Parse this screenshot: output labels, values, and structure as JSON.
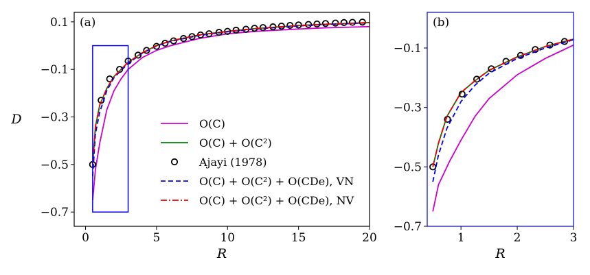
{
  "chart_data": [
    {
      "id": "a",
      "type": "line",
      "panel_label": "(a)",
      "xlabel": "R",
      "ylabel": "D",
      "xlim": [
        -0.8,
        20
      ],
      "ylim": [
        -0.76,
        0.14
      ],
      "xticks": [
        0,
        5,
        10,
        15,
        20
      ],
      "xtick_labels": [
        "0",
        "5",
        "10",
        "15",
        "20"
      ],
      "yticks": [
        0.1,
        -0.1,
        -0.3,
        -0.5,
        -0.7
      ],
      "ytick_labels": [
        "0.1",
        "−0.1",
        "−0.3",
        "−0.5",
        "−0.7"
      ],
      "zoom_box": {
        "x": [
          0.5,
          3
        ],
        "y": [
          -0.7,
          0
        ]
      },
      "legend_position": "lower-right",
      "series": [
        {
          "name": "O(C)",
          "style": "solid",
          "color": "#cc00cc",
          "x": [
            0.5,
            0.7,
            1.0,
            1.5,
            2,
            2.5,
            3,
            4,
            5,
            6,
            8,
            10,
            12,
            15,
            17,
            20
          ],
          "y": [
            -0.65,
            -0.52,
            -0.41,
            -0.27,
            -0.19,
            -0.14,
            -0.1,
            -0.05,
            -0.02,
            0.0,
            0.03,
            0.05,
            0.06,
            0.07,
            0.075,
            0.08
          ]
        },
        {
          "name": "O(C)+O(C²)",
          "style": "solid",
          "color": "#008000",
          "x": [
            0.5,
            0.7,
            1.0,
            1.5,
            2,
            2.5,
            3,
            4,
            5,
            6,
            8,
            10,
            12,
            15,
            17,
            20
          ],
          "y": [
            -0.5,
            -0.34,
            -0.25,
            -0.18,
            -0.13,
            -0.1,
            -0.07,
            -0.03,
            0.0,
            0.02,
            0.045,
            0.06,
            0.072,
            0.085,
            0.09,
            0.097
          ]
        },
        {
          "name": "Ajayi (1978)",
          "style": "marker",
          "color": "#000000",
          "x": [
            0.5,
            1.1,
            1.7,
            2.4,
            3.0,
            3.7,
            4.3,
            5.0,
            5.6,
            6.2,
            6.9,
            7.5,
            8.1,
            8.7,
            9.4,
            10.0,
            10.6,
            11.3,
            11.9,
            12.5,
            13.2,
            13.8,
            14.4,
            15.0,
            15.7,
            16.3,
            16.9,
            17.6,
            18.2,
            18.8,
            19.5
          ],
          "y": [
            -0.5,
            -0.23,
            -0.14,
            -0.1,
            -0.065,
            -0.04,
            -0.02,
            -0.003,
            0.01,
            0.02,
            0.03,
            0.038,
            0.045,
            0.05,
            0.056,
            0.06,
            0.065,
            0.069,
            0.073,
            0.076,
            0.079,
            0.082,
            0.085,
            0.087,
            0.089,
            0.091,
            0.093,
            0.095,
            0.097,
            0.098,
            0.099
          ]
        },
        {
          "name": "O(C)+O(C²)+O(CDe), VN",
          "style": "dashed",
          "color": "#0000ee",
          "x": [
            0.5,
            0.7,
            1.0,
            1.5,
            2,
            2.5,
            3,
            4,
            5,
            6,
            8,
            10,
            12,
            15,
            17,
            20
          ],
          "y": [
            -0.55,
            -0.37,
            -0.28,
            -0.19,
            -0.135,
            -0.105,
            -0.075,
            -0.032,
            -0.002,
            0.018,
            0.043,
            0.058,
            0.07,
            0.083,
            0.089,
            0.096
          ]
        },
        {
          "name": "O(C)+O(C²)+O(CDe), NV",
          "style": "dashdot",
          "color": "#ee0000",
          "x": [
            0.5,
            0.7,
            1.0,
            1.5,
            2,
            2.5,
            3,
            4,
            5,
            6,
            8,
            10,
            12,
            15,
            17,
            20
          ],
          "y": [
            -0.5,
            -0.34,
            -0.25,
            -0.18,
            -0.13,
            -0.1,
            -0.07,
            -0.03,
            0.0,
            0.02,
            0.045,
            0.06,
            0.072,
            0.085,
            0.09,
            0.097
          ]
        }
      ],
      "legend": [
        {
          "label": "O(C)",
          "color": "#cc00cc",
          "style": "solid"
        },
        {
          "label": "O(C) + O(C²)",
          "color": "#008000",
          "style": "solid"
        },
        {
          "label": "Ajayi (1978)",
          "color": "#000000",
          "style": "marker"
        },
        {
          "label": "O(C) + O(C²) + O(CDe), VN",
          "color": "#0000ee",
          "style": "dashed"
        },
        {
          "label": "O(C) + O(C²) + O(CDe), NV",
          "color": "#ee0000",
          "style": "dashdot"
        }
      ]
    },
    {
      "id": "b",
      "type": "line",
      "panel_label": "(b)",
      "xlabel": "R",
      "ylabel": "",
      "xlim": [
        0.4,
        3
      ],
      "ylim": [
        -0.7,
        0.02
      ],
      "xticks": [
        1,
        2,
        3
      ],
      "xtick_labels": [
        "1",
        "2",
        "3"
      ],
      "yticks": [
        -0.1,
        -0.3,
        -0.5,
        -0.7
      ],
      "ytick_labels": [
        "−0.1",
        "−0.3",
        "−0.5",
        "−0.7"
      ],
      "frame_color": "#0000ee",
      "series": [
        {
          "name": "O(C)",
          "style": "solid",
          "color": "#cc00cc",
          "x": [
            0.5,
            0.6,
            0.8,
            1.0,
            1.25,
            1.5,
            2,
            2.5,
            3
          ],
          "y": [
            -0.65,
            -0.56,
            -0.48,
            -0.41,
            -0.33,
            -0.27,
            -0.19,
            -0.135,
            -0.09
          ]
        },
        {
          "name": "O(C)+O(C²)",
          "style": "solid",
          "color": "#008000",
          "x": [
            0.5,
            0.6,
            0.75,
            1.0,
            1.25,
            1.5,
            2,
            2.5,
            3
          ],
          "y": [
            -0.5,
            -0.42,
            -0.33,
            -0.25,
            -0.21,
            -0.175,
            -0.13,
            -0.095,
            -0.07
          ]
        },
        {
          "name": "Ajayi (1978)",
          "style": "marker",
          "color": "#000000",
          "x": [
            0.5,
            0.76,
            1.02,
            1.28,
            1.54,
            1.8,
            2.06,
            2.32,
            2.58,
            2.84
          ],
          "y": [
            -0.5,
            -0.34,
            -0.255,
            -0.205,
            -0.17,
            -0.145,
            -0.125,
            -0.105,
            -0.09,
            -0.078
          ]
        },
        {
          "name": "O(C)+O(C²)+O(CDe), VN",
          "style": "dashed",
          "color": "#0000ee",
          "x": [
            0.5,
            0.6,
            0.75,
            1.0,
            1.25,
            1.5,
            2,
            2.5,
            3
          ],
          "y": [
            -0.55,
            -0.46,
            -0.37,
            -0.28,
            -0.225,
            -0.185,
            -0.135,
            -0.1,
            -0.072
          ]
        },
        {
          "name": "O(C)+O(C²)+O(CDe), NV",
          "style": "dashdot",
          "color": "#ee0000",
          "x": [
            0.5,
            0.6,
            0.75,
            1.0,
            1.25,
            1.5,
            2,
            2.5,
            3
          ],
          "y": [
            -0.5,
            -0.42,
            -0.33,
            -0.25,
            -0.21,
            -0.175,
            -0.13,
            -0.095,
            -0.07
          ]
        }
      ]
    }
  ]
}
